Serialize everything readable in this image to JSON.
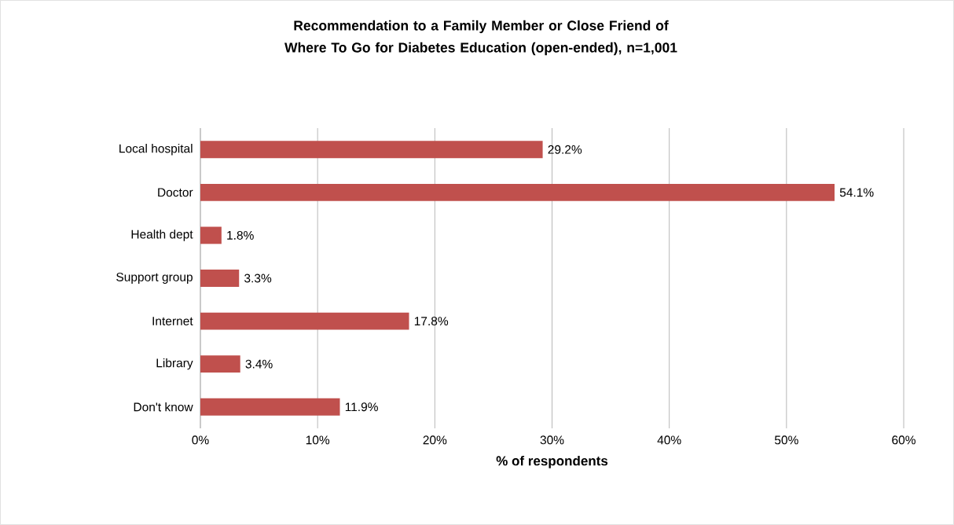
{
  "chart_data": {
    "type": "bar",
    "orientation": "horizontal",
    "title": "Recommendation to a Family Member or Close Friend of Where To Go for Diabetes Education (open-ended), n=1,001",
    "xlabel": "% of respondents",
    "categories": [
      "Local hospital",
      "Doctor",
      "Health dept",
      "Support group",
      "Internet",
      "Library",
      "Don't know"
    ],
    "values": [
      29.2,
      54.1,
      1.8,
      3.3,
      17.8,
      3.4,
      11.9
    ],
    "value_labels": [
      "29.2%",
      "54.1%",
      "1.8%",
      "3.3%",
      "17.8%",
      "3.4%",
      "11.9%"
    ],
    "color": "#c0504d",
    "xlim": [
      0,
      60
    ],
    "xticks": [
      {
        "value": 0,
        "label": "0%"
      },
      {
        "value": 10,
        "label": "10%"
      },
      {
        "value": 20,
        "label": "20%"
      },
      {
        "value": 30,
        "label": "30%"
      },
      {
        "value": 40,
        "label": "40%"
      },
      {
        "value": 50,
        "label": "50%"
      },
      {
        "value": 60,
        "label": "60%"
      }
    ],
    "grid": "x"
  }
}
